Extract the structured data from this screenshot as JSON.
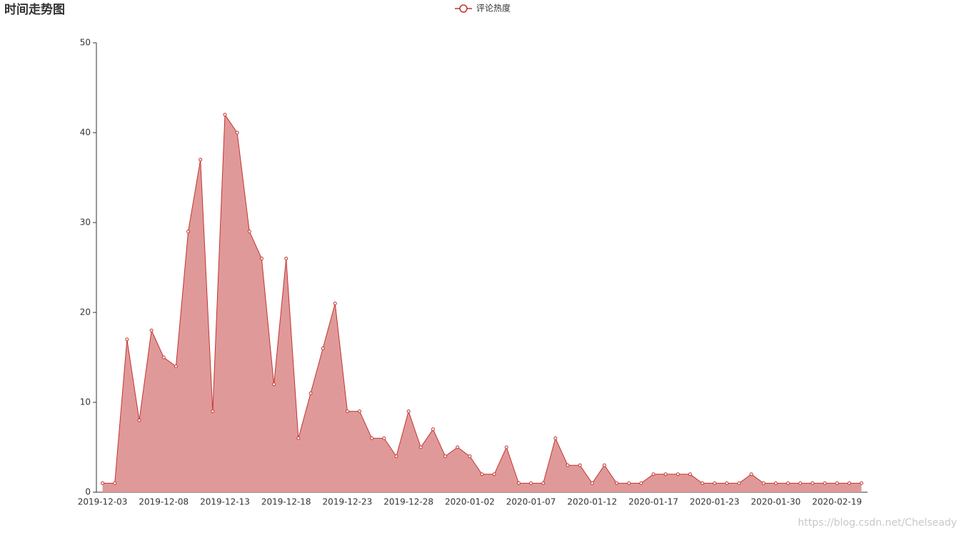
{
  "chart_data": {
    "type": "area",
    "title": "时间走势图",
    "categories": [
      "2019-12-03",
      null,
      null,
      null,
      null,
      "2019-12-08",
      null,
      null,
      null,
      null,
      "2019-12-13",
      null,
      null,
      null,
      null,
      "2019-12-18",
      null,
      null,
      null,
      null,
      "2019-12-23",
      null,
      null,
      null,
      null,
      "2019-12-28",
      null,
      null,
      null,
      null,
      "2020-01-02",
      null,
      null,
      null,
      null,
      "2020-01-07",
      null,
      null,
      null,
      null,
      "2020-01-12",
      null,
      null,
      null,
      null,
      "2020-01-17",
      null,
      null,
      null,
      null,
      "2020-01-23",
      null,
      null,
      null,
      null,
      "2020-01-30",
      null,
      null,
      null,
      null,
      "2020-02-19",
      null,
      null
    ],
    "series": [
      {
        "name": "评论热度",
        "color": "#c23531",
        "fill": "#e09999",
        "values": [
          1,
          1,
          17,
          8,
          18,
          15,
          14,
          29,
          37,
          9,
          42,
          40,
          29,
          26,
          12,
          26,
          6,
          11,
          16,
          21,
          9,
          9,
          6,
          6,
          4,
          9,
          5,
          7,
          4,
          5,
          4,
          2,
          2,
          5,
          1,
          1,
          1,
          6,
          3,
          3,
          1,
          3,
          1,
          1,
          1,
          2,
          2,
          2,
          2,
          1,
          1,
          1,
          1,
          2,
          1,
          1,
          1,
          1,
          1,
          1,
          1,
          1,
          1
        ]
      }
    ],
    "ylim": [
      0,
      50
    ],
    "yticks": [
      0,
      10,
      20,
      30,
      40,
      50
    ],
    "grid": false,
    "legend": "top",
    "watermark": "https://blog.csdn.net/Chelseady"
  }
}
